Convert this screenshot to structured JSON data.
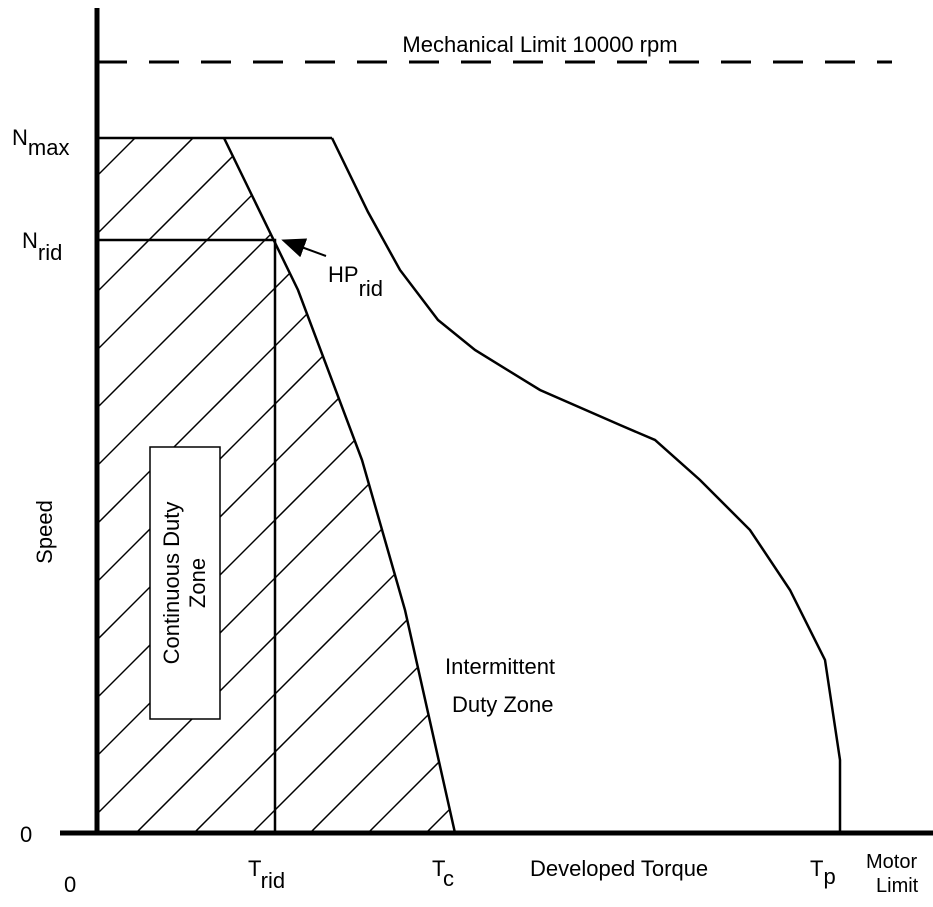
{
  "title": "Mechanical Limit 10000 rpm",
  "y_axis": {
    "label": "Speed",
    "zero": "0"
  },
  "x_axis": {
    "label": "Developed Torque",
    "zero": "0"
  },
  "n_max": {
    "main": "N",
    "sub": "max"
  },
  "n_rid": {
    "main": "N",
    "sub": "rid"
  },
  "hp_rid": {
    "main": "HP",
    "sub": "rid"
  },
  "t_rid": {
    "main": "T",
    "sub": "rid"
  },
  "t_c": {
    "main": "T",
    "sub": "c"
  },
  "t_p": {
    "main": "T",
    "sub": "p"
  },
  "motor_limit": [
    "Motor",
    "Limit"
  ],
  "continuous_zone": [
    "Continuous Duty",
    "Zone"
  ],
  "intermittent_zone": [
    "Intermittent",
    "Duty Zone"
  ]
}
